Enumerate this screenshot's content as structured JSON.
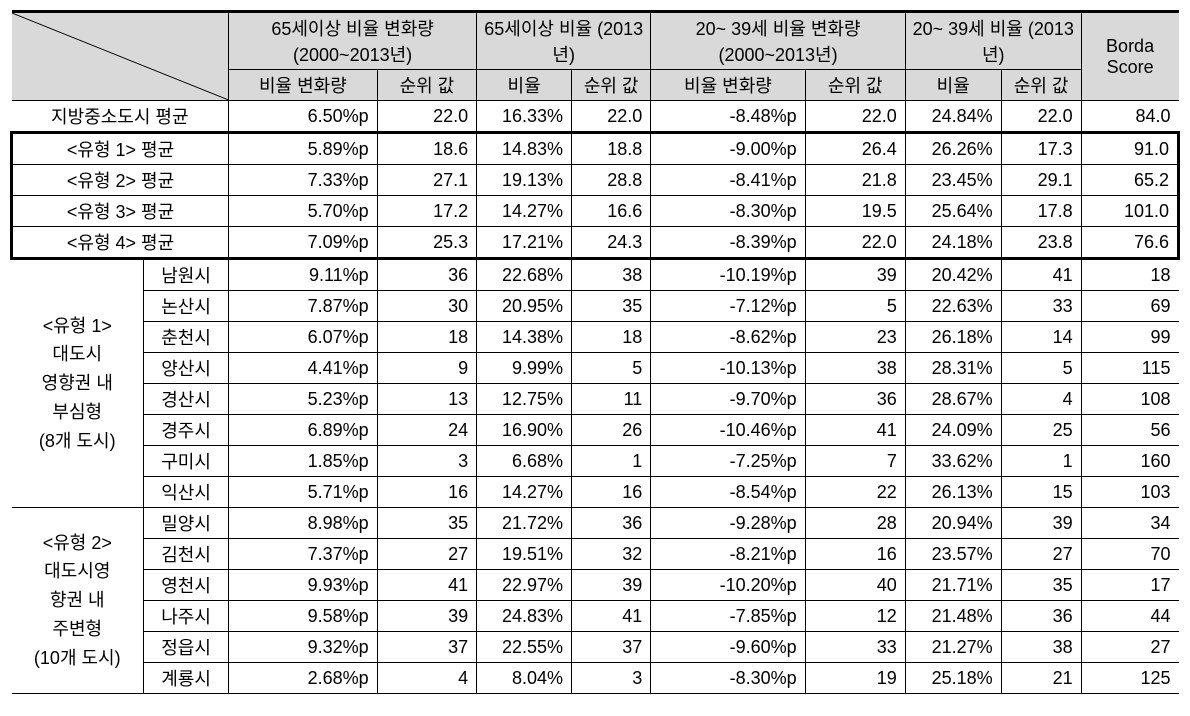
{
  "header": {
    "col_group_1": "65세이상 비율 변화량 (2000~2013년)",
    "col_group_2": "65세이상 비율 (2013년)",
    "col_group_3": "20~ 39세 비율 변화량 (2000~2013년)",
    "col_group_4": "20~ 39세 비율 (2013년)",
    "col_borda": "Borda Score",
    "sub_rate_change": "비율 변화량",
    "sub_rate": "비율",
    "sub_rank": "순위 값"
  },
  "summary_rows": [
    {
      "label": "지방중소도시 평균",
      "v": [
        "6.50%p",
        "22.0",
        "16.33%",
        "22.0",
        "-8.48%p",
        "22.0",
        "24.84%",
        "22.0",
        "84.0"
      ]
    },
    {
      "label": "<유형 1> 평균",
      "v": [
        "5.89%p",
        "18.6",
        "14.83%",
        "18.8",
        "-9.00%p",
        "26.4",
        "26.26%",
        "17.3",
        "91.0"
      ]
    },
    {
      "label": "<유형 2> 평균",
      "v": [
        "7.33%p",
        "27.1",
        "19.13%",
        "28.8",
        "-8.41%p",
        "21.8",
        "23.45%",
        "29.1",
        "65.2"
      ]
    },
    {
      "label": "<유형 3> 평균",
      "v": [
        "5.70%p",
        "17.2",
        "14.27%",
        "16.6",
        "-8.30%p",
        "19.5",
        "25.64%",
        "17.8",
        "101.0"
      ]
    },
    {
      "label": "<유형 4> 평균",
      "v": [
        "7.09%p",
        "25.3",
        "17.21%",
        "24.3",
        "-8.39%p",
        "22.0",
        "24.18%",
        "23.8",
        "76.6"
      ]
    }
  ],
  "group1": {
    "title_lines": [
      "<유형 1>",
      "대도시",
      "영향권 내",
      "부심형",
      "(8개 도시)"
    ],
    "rows": [
      {
        "city": "남원시",
        "v": [
          "9.11%p",
          "36",
          "22.68%",
          "38",
          "-10.19%p",
          "39",
          "20.42%",
          "41",
          "18"
        ]
      },
      {
        "city": "논산시",
        "v": [
          "7.87%p",
          "30",
          "20.95%",
          "35",
          "-7.12%p",
          "5",
          "22.63%",
          "33",
          "69"
        ]
      },
      {
        "city": "춘천시",
        "v": [
          "6.07%p",
          "18",
          "14.38%",
          "18",
          "-8.62%p",
          "23",
          "26.18%",
          "14",
          "99"
        ]
      },
      {
        "city": "양산시",
        "v": [
          "4.41%p",
          "9",
          "9.99%",
          "5",
          "-10.13%p",
          "38",
          "28.31%",
          "5",
          "115"
        ]
      },
      {
        "city": "경산시",
        "v": [
          "5.23%p",
          "13",
          "12.75%",
          "11",
          "-9.70%p",
          "36",
          "28.67%",
          "4",
          "108"
        ]
      },
      {
        "city": "경주시",
        "v": [
          "6.89%p",
          "24",
          "16.90%",
          "26",
          "-10.46%p",
          "41",
          "24.09%",
          "25",
          "56"
        ]
      },
      {
        "city": "구미시",
        "v": [
          "1.85%p",
          "3",
          "6.68%",
          "1",
          "-7.25%p",
          "7",
          "33.62%",
          "1",
          "160"
        ]
      },
      {
        "city": "익산시",
        "v": [
          "5.71%p",
          "16",
          "14.27%",
          "16",
          "-8.54%p",
          "22",
          "26.13%",
          "15",
          "103"
        ]
      }
    ]
  },
  "group2": {
    "title_lines": [
      "<유형 2>",
      "대도시영",
      "향권 내",
      "주변형",
      "(10개 도시)"
    ],
    "rows": [
      {
        "city": "밀양시",
        "v": [
          "8.98%p",
          "35",
          "21.72%",
          "36",
          "-9.28%p",
          "28",
          "20.94%",
          "39",
          "34"
        ]
      },
      {
        "city": "김천시",
        "v": [
          "7.37%p",
          "27",
          "19.51%",
          "32",
          "-8.21%p",
          "16",
          "23.57%",
          "27",
          "70"
        ]
      },
      {
        "city": "영천시",
        "v": [
          "9.93%p",
          "41",
          "22.97%",
          "39",
          "-10.20%p",
          "40",
          "21.71%",
          "35",
          "17"
        ]
      },
      {
        "city": "나주시",
        "v": [
          "9.58%p",
          "39",
          "24.83%",
          "41",
          "-7.85%p",
          "12",
          "21.48%",
          "36",
          "44"
        ]
      },
      {
        "city": "정읍시",
        "v": [
          "9.32%p",
          "37",
          "22.55%",
          "37",
          "-9.60%p",
          "33",
          "21.27%",
          "38",
          "27"
        ]
      },
      {
        "city": "계룡시",
        "v": [
          "2.68%p",
          "4",
          "8.04%",
          "3",
          "-8.30%p",
          "19",
          "25.18%",
          "21",
          "125"
        ]
      }
    ]
  }
}
